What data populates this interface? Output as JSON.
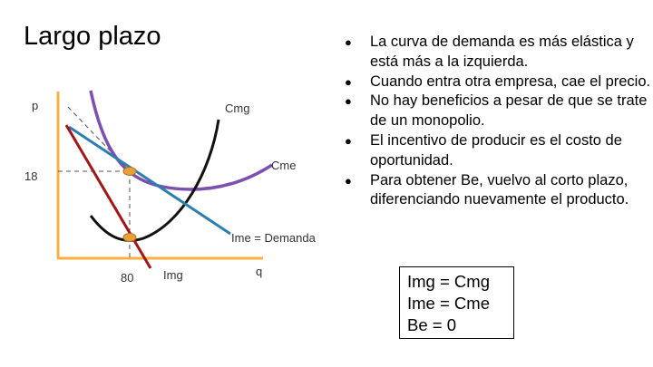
{
  "slide": {
    "title": "Largo plazo",
    "bullets": [
      {
        "text": "La curva de demanda es más elástica y está más a la izquierda."
      },
      {
        "text": "Cuando entra otra empresa, cae el precio."
      },
      {
        "text": "No hay beneficios a pesar de que se trate de un monopolio."
      },
      {
        "text": "El incentivo de producir es el costo de oportunidad."
      },
      {
        "text": "Para obtener Be, vuelvo al corto plazo, diferenciando nuevamente el producto."
      }
    ],
    "bullet_glyph": "●",
    "equations": [
      "Img = Cmg",
      "Ime = Cme",
      "Be = 0"
    ]
  },
  "diagram": {
    "labels": {
      "y_axis": "p",
      "x_axis": "q",
      "cmg": "Cmg",
      "cme": "Cme",
      "demand": "Ime = Demanda",
      "price_tick": "18",
      "qty_tick": "80",
      "img": "Img"
    },
    "colors": {
      "axes": "#f5b041",
      "cmg_curve": "#111111",
      "cme_curve": "#7d4fb0",
      "demand_curve": "#2b7fb0",
      "img_curve": "#a31515",
      "guides": "#555555",
      "points": "#e8a13a"
    }
  }
}
